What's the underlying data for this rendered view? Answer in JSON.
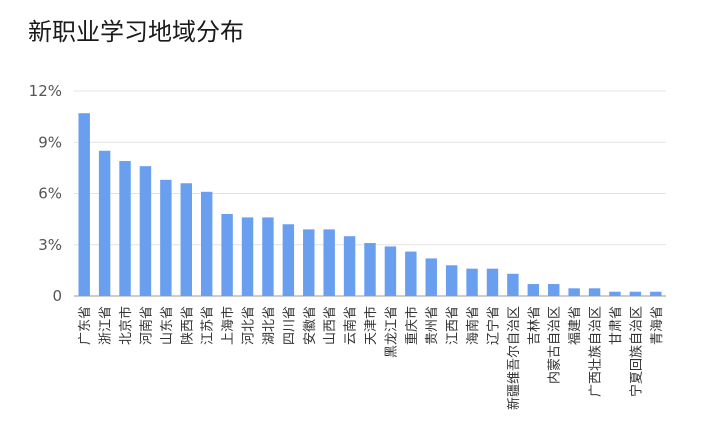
{
  "chart_data": {
    "type": "bar",
    "title": "新职业学习地域分布",
    "xlabel": "",
    "ylabel": "",
    "ylim": [
      0,
      12
    ],
    "yticks": [
      "0",
      "3%",
      "6%",
      "9%",
      "12%"
    ],
    "grid": true,
    "bar_color": "#6a9ff0",
    "categories": [
      "广东省",
      "浙江省",
      "北京市",
      "河南省",
      "山东省",
      "陕西省",
      "江苏省",
      "上海市",
      "河北省",
      "湖北省",
      "四川省",
      "安徽省",
      "山西省",
      "云南省",
      "天津市",
      "黑龙江省",
      "重庆市",
      "贵州省",
      "江西省",
      "海南省",
      "辽宁省",
      "新疆维吾尔自治区",
      "吉林省",
      "内蒙古自治区",
      "福建省",
      "广西壮族自治区",
      "甘肃省",
      "宁夏回族自治区",
      "青海省"
    ],
    "values": [
      10.7,
      8.5,
      7.9,
      7.6,
      6.8,
      6.6,
      6.1,
      4.8,
      4.6,
      4.6,
      4.2,
      3.9,
      3.9,
      3.5,
      3.1,
      2.9,
      2.6,
      2.2,
      1.8,
      1.6,
      1.6,
      1.3,
      0.7,
      0.7,
      0.45,
      0.45,
      0.25,
      0.25,
      0.25
    ]
  }
}
